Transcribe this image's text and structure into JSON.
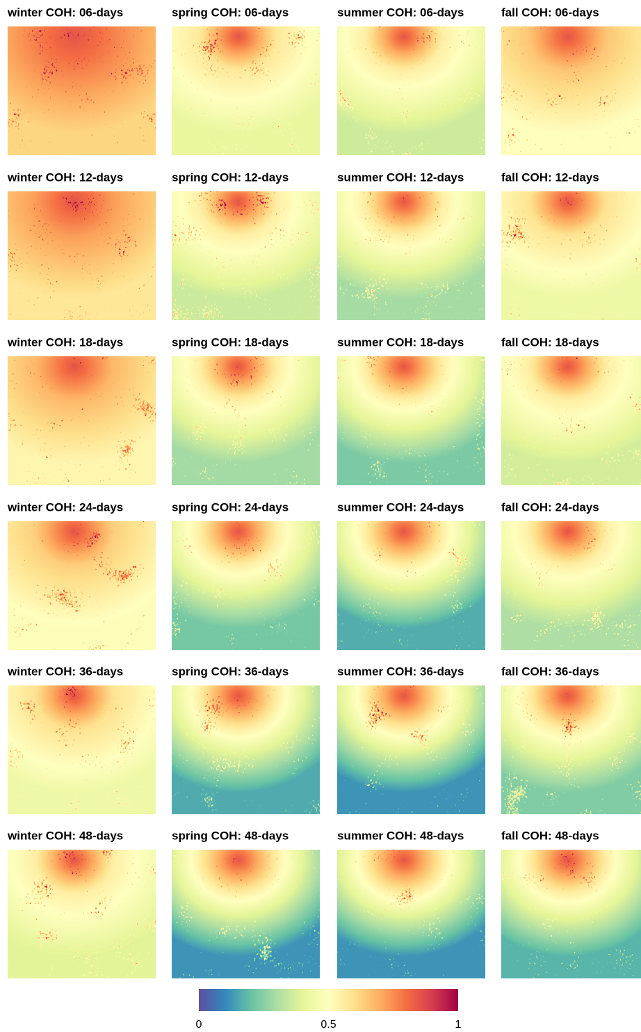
{
  "panels": [
    [
      "winter COH: 06-days",
      "spring COH: 06-days",
      "summer COH: 06-days",
      "fall COH: 06-days"
    ],
    [
      "winter COH: 12-days",
      "spring COH: 12-days",
      "summer COH: 12-days",
      "fall COH: 12-days"
    ],
    [
      "winter COH: 18-days",
      "spring COH: 18-days",
      "summer COH: 18-days",
      "fall COH: 18-days"
    ],
    [
      "winter COH: 24-days",
      "spring COH: 24-days",
      "summer COH: 24-days",
      "fall COH: 24-days"
    ],
    [
      "winter COH: 36-days",
      "spring COH: 36-days",
      "summer COH: 36-days",
      "fall COH: 36-days"
    ],
    [
      "winter COH: 48-days",
      "spring COH: 48-days",
      "summer COH: 48-days",
      "fall COH: 48-days"
    ]
  ],
  "colorbar": {
    "range": [
      0,
      1
    ],
    "ticks": [
      0,
      0.5,
      1
    ],
    "colors": [
      "#5e4fa2",
      "#3288bd",
      "#66c2a5",
      "#abdda4",
      "#e6f598",
      "#ffffbf",
      "#fee08b",
      "#fdae61",
      "#f46d43",
      "#d53e4f",
      "#9e0142"
    ]
  }
}
